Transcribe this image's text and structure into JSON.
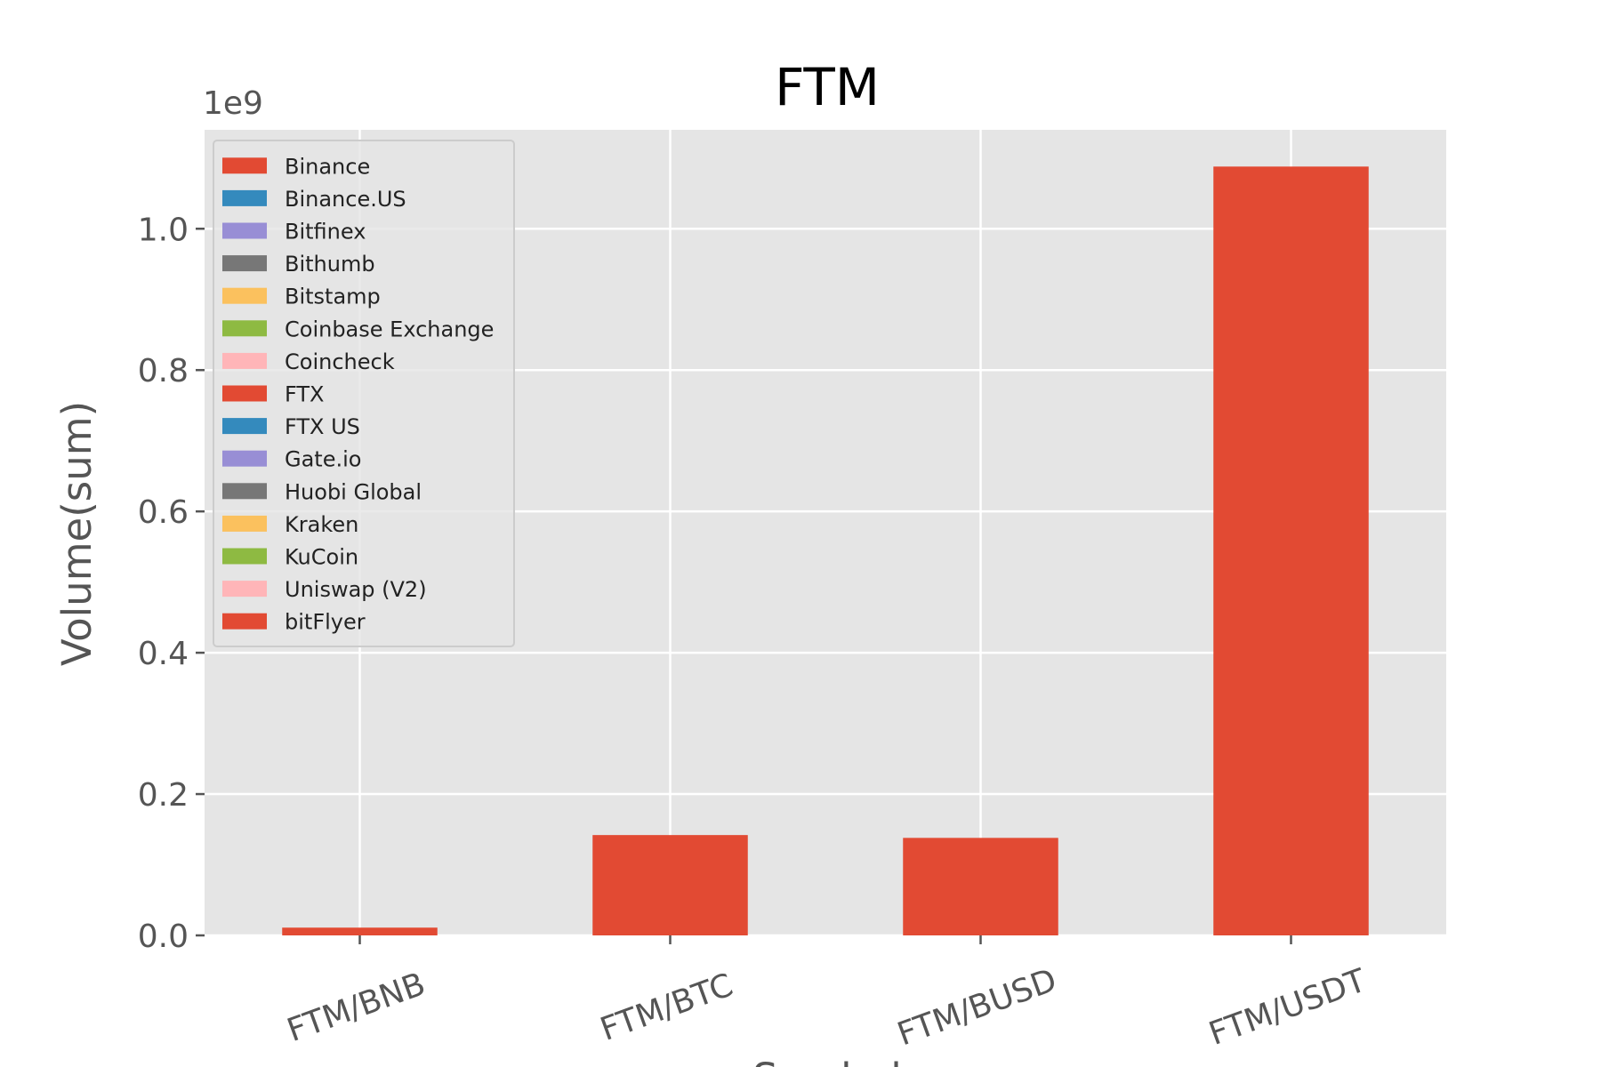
{
  "chart_data": {
    "type": "bar",
    "stacked": true,
    "title": "FTM",
    "xlabel": "Symbol",
    "ylabel": "Volume(sum)",
    "y_offset_label": "1e9",
    "ylim": [
      0,
      1.14
    ],
    "y_ticks": [
      "0.0",
      "0.2",
      "0.4",
      "0.6",
      "0.8",
      "1.0"
    ],
    "categories": [
      "FTM/BNB",
      "FTM/BTC",
      "FTM/BUSD",
      "FTM/USDT"
    ],
    "grid": true,
    "legend_position": "top-left",
    "series": [
      {
        "name": "Binance",
        "color": "#E24A33",
        "values": [
          0.011,
          0.142,
          0.138,
          1.088
        ]
      },
      {
        "name": "Binance.US",
        "color": "#348ABD",
        "values": [
          0,
          0,
          0,
          0
        ]
      },
      {
        "name": "Bitfinex",
        "color": "#988ED5",
        "values": [
          0,
          0,
          0,
          0
        ]
      },
      {
        "name": "Bithumb",
        "color": "#777777",
        "values": [
          0,
          0,
          0,
          0
        ]
      },
      {
        "name": "Bitstamp",
        "color": "#FBC15E",
        "values": [
          0,
          0,
          0,
          0
        ]
      },
      {
        "name": "Coinbase Exchange",
        "color": "#8EBA42",
        "values": [
          0,
          0,
          0,
          0
        ]
      },
      {
        "name": "Coincheck",
        "color": "#FFB5B8",
        "values": [
          0,
          0,
          0,
          0
        ]
      },
      {
        "name": "FTX",
        "color": "#E24A33",
        "values": [
          0,
          0,
          0,
          0
        ]
      },
      {
        "name": "FTX US",
        "color": "#348ABD",
        "values": [
          0,
          0,
          0,
          0
        ]
      },
      {
        "name": "Gate.io",
        "color": "#988ED5",
        "values": [
          0,
          0,
          0,
          0
        ]
      },
      {
        "name": "Huobi Global",
        "color": "#777777",
        "values": [
          0,
          0,
          0,
          0
        ]
      },
      {
        "name": "Kraken",
        "color": "#FBC15E",
        "values": [
          0,
          0,
          0,
          0
        ]
      },
      {
        "name": "KuCoin",
        "color": "#8EBA42",
        "values": [
          0,
          0,
          0,
          0
        ]
      },
      {
        "name": "Uniswap (V2)",
        "color": "#FFB5B8",
        "values": [
          0,
          0,
          0,
          0
        ]
      },
      {
        "name": "bitFlyer",
        "color": "#E24A33",
        "values": [
          0,
          0,
          0,
          0
        ]
      }
    ],
    "colors": {
      "plot_background": "#E5E5E5",
      "grid": "#FFFFFF",
      "axis_text": "#555555",
      "title_text": "#000000"
    }
  }
}
